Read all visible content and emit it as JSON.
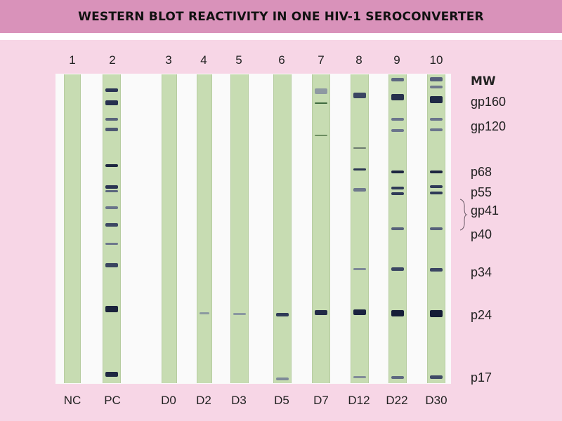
{
  "title": "WESTERN BLOT REACTIVITY IN ONE HIV-1 SEROCONVERTER",
  "mw_header": "MW",
  "markers": [
    "gp160",
    "gp120",
    "p68",
    "p55",
    "gp41",
    "p40",
    "p34",
    "p24",
    "p17"
  ],
  "lanes": [
    {
      "number": "1",
      "label": "NC"
    },
    {
      "number": "2",
      "label": "PC"
    },
    {
      "number": "3",
      "label": "D0"
    },
    {
      "number": "4",
      "label": "D2"
    },
    {
      "number": "5",
      "label": "D3"
    },
    {
      "number": "6",
      "label": "D5"
    },
    {
      "number": "7",
      "label": "D7"
    },
    {
      "number": "8",
      "label": "D12"
    },
    {
      "number": "9",
      "label": "D22"
    },
    {
      "number": "10",
      "label": "D30"
    }
  ],
  "colors": {
    "title_band": "#d992ba",
    "panel": "#f7d6e6",
    "strip": "#c7dcb2",
    "band": "#1f2a44"
  }
}
